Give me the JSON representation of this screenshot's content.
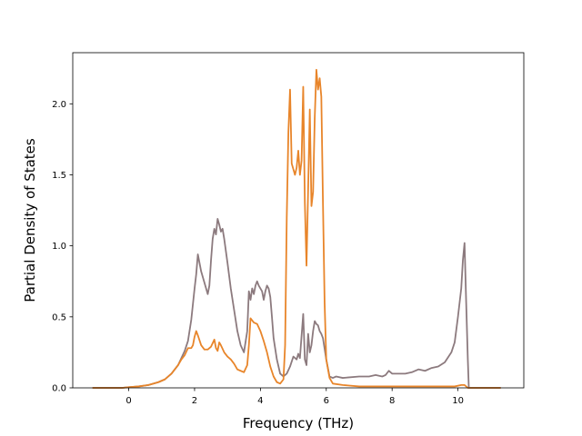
{
  "chart_data": {
    "type": "line",
    "title": "",
    "xlabel": "Frequency (THz)",
    "ylabel": "Partial Density of States",
    "xlim": [
      -1.7,
      12.0
    ],
    "ylim": [
      0.0,
      2.36
    ],
    "xticks": [
      0,
      2,
      4,
      6,
      8,
      10
    ],
    "xtick_labels": [
      "0",
      "2",
      "4",
      "6",
      "8",
      "10"
    ],
    "yticks": [
      0.0,
      0.5,
      1.0,
      1.5,
      2.0
    ],
    "ytick_labels": [
      "0.0",
      "0.5",
      "1.0",
      "1.5",
      "2.0"
    ],
    "grid": false,
    "legend": "none",
    "series": [
      {
        "color": "#8c7a7e",
        "points": [
          [
            -1.1,
            0.0
          ],
          [
            -0.2,
            0.0
          ],
          [
            0.0,
            0.005
          ],
          [
            0.3,
            0.01
          ],
          [
            0.6,
            0.02
          ],
          [
            0.9,
            0.04
          ],
          [
            1.1,
            0.06
          ],
          [
            1.3,
            0.1
          ],
          [
            1.5,
            0.16
          ],
          [
            1.7,
            0.26
          ],
          [
            1.8,
            0.33
          ],
          [
            1.9,
            0.48
          ],
          [
            2.0,
            0.7
          ],
          [
            2.05,
            0.8
          ],
          [
            2.1,
            0.94
          ],
          [
            2.15,
            0.88
          ],
          [
            2.2,
            0.82
          ],
          [
            2.3,
            0.74
          ],
          [
            2.4,
            0.66
          ],
          [
            2.45,
            0.72
          ],
          [
            2.5,
            0.9
          ],
          [
            2.55,
            1.05
          ],
          [
            2.6,
            1.12
          ],
          [
            2.65,
            1.08
          ],
          [
            2.7,
            1.19
          ],
          [
            2.75,
            1.15
          ],
          [
            2.8,
            1.1
          ],
          [
            2.85,
            1.12
          ],
          [
            2.9,
            1.05
          ],
          [
            3.0,
            0.88
          ],
          [
            3.1,
            0.7
          ],
          [
            3.2,
            0.55
          ],
          [
            3.3,
            0.4
          ],
          [
            3.4,
            0.3
          ],
          [
            3.5,
            0.25
          ],
          [
            3.6,
            0.4
          ],
          [
            3.65,
            0.68
          ],
          [
            3.7,
            0.62
          ],
          [
            3.75,
            0.7
          ],
          [
            3.8,
            0.66
          ],
          [
            3.85,
            0.72
          ],
          [
            3.9,
            0.75
          ],
          [
            3.95,
            0.72
          ],
          [
            4.0,
            0.7
          ],
          [
            4.05,
            0.68
          ],
          [
            4.1,
            0.62
          ],
          [
            4.15,
            0.68
          ],
          [
            4.2,
            0.72
          ],
          [
            4.25,
            0.7
          ],
          [
            4.3,
            0.64
          ],
          [
            4.35,
            0.5
          ],
          [
            4.4,
            0.35
          ],
          [
            4.5,
            0.2
          ],
          [
            4.6,
            0.1
          ],
          [
            4.7,
            0.08
          ],
          [
            4.8,
            0.1
          ],
          [
            4.9,
            0.15
          ],
          [
            5.0,
            0.22
          ],
          [
            5.1,
            0.2
          ],
          [
            5.15,
            0.24
          ],
          [
            5.2,
            0.21
          ],
          [
            5.3,
            0.52
          ],
          [
            5.35,
            0.2
          ],
          [
            5.4,
            0.16
          ],
          [
            5.45,
            0.38
          ],
          [
            5.5,
            0.25
          ],
          [
            5.55,
            0.3
          ],
          [
            5.6,
            0.4
          ],
          [
            5.65,
            0.47
          ],
          [
            5.7,
            0.45
          ],
          [
            5.75,
            0.44
          ],
          [
            5.8,
            0.4
          ],
          [
            5.85,
            0.38
          ],
          [
            5.9,
            0.35
          ],
          [
            6.0,
            0.2
          ],
          [
            6.1,
            0.08
          ],
          [
            6.2,
            0.07
          ],
          [
            6.3,
            0.08
          ],
          [
            6.5,
            0.07
          ],
          [
            7.0,
            0.08
          ],
          [
            7.3,
            0.08
          ],
          [
            7.5,
            0.09
          ],
          [
            7.7,
            0.08
          ],
          [
            7.8,
            0.09
          ],
          [
            7.9,
            0.12
          ],
          [
            8.0,
            0.1
          ],
          [
            8.4,
            0.1
          ],
          [
            8.6,
            0.11
          ],
          [
            8.8,
            0.13
          ],
          [
            9.0,
            0.12
          ],
          [
            9.2,
            0.14
          ],
          [
            9.4,
            0.15
          ],
          [
            9.6,
            0.18
          ],
          [
            9.8,
            0.25
          ],
          [
            9.9,
            0.32
          ],
          [
            10.0,
            0.5
          ],
          [
            10.1,
            0.7
          ],
          [
            10.15,
            0.9
          ],
          [
            10.2,
            1.02
          ],
          [
            10.25,
            0.6
          ],
          [
            10.3,
            0.2
          ],
          [
            10.33,
            0.0
          ],
          [
            11.3,
            0.0
          ]
        ]
      },
      {
        "color": "#e8852a",
        "points": [
          [
            -1.1,
            0.0
          ],
          [
            -0.2,
            0.0
          ],
          [
            0.0,
            0.005
          ],
          [
            0.3,
            0.01
          ],
          [
            0.6,
            0.02
          ],
          [
            0.9,
            0.04
          ],
          [
            1.1,
            0.06
          ],
          [
            1.3,
            0.1
          ],
          [
            1.5,
            0.16
          ],
          [
            1.6,
            0.2
          ],
          [
            1.7,
            0.23
          ],
          [
            1.8,
            0.28
          ],
          [
            1.9,
            0.28
          ],
          [
            1.95,
            0.3
          ],
          [
            2.0,
            0.36
          ],
          [
            2.05,
            0.4
          ],
          [
            2.1,
            0.37
          ],
          [
            2.2,
            0.3
          ],
          [
            2.3,
            0.27
          ],
          [
            2.4,
            0.27
          ],
          [
            2.5,
            0.29
          ],
          [
            2.6,
            0.34
          ],
          [
            2.65,
            0.28
          ],
          [
            2.7,
            0.26
          ],
          [
            2.75,
            0.32
          ],
          [
            2.8,
            0.3
          ],
          [
            2.9,
            0.25
          ],
          [
            3.0,
            0.22
          ],
          [
            3.1,
            0.2
          ],
          [
            3.2,
            0.17
          ],
          [
            3.3,
            0.13
          ],
          [
            3.4,
            0.12
          ],
          [
            3.5,
            0.11
          ],
          [
            3.6,
            0.16
          ],
          [
            3.65,
            0.3
          ],
          [
            3.7,
            0.49
          ],
          [
            3.8,
            0.46
          ],
          [
            3.9,
            0.45
          ],
          [
            4.0,
            0.4
          ],
          [
            4.1,
            0.33
          ],
          [
            4.2,
            0.25
          ],
          [
            4.3,
            0.15
          ],
          [
            4.4,
            0.08
          ],
          [
            4.5,
            0.04
          ],
          [
            4.6,
            0.03
          ],
          [
            4.7,
            0.06
          ],
          [
            4.75,
            0.3
          ],
          [
            4.8,
            1.2
          ],
          [
            4.85,
            1.8
          ],
          [
            4.9,
            2.1
          ],
          [
            4.95,
            1.58
          ],
          [
            5.0,
            1.54
          ],
          [
            5.05,
            1.5
          ],
          [
            5.1,
            1.55
          ],
          [
            5.15,
            1.67
          ],
          [
            5.2,
            1.5
          ],
          [
            5.25,
            1.6
          ],
          [
            5.3,
            2.12
          ],
          [
            5.35,
            1.3
          ],
          [
            5.4,
            0.86
          ],
          [
            5.45,
            1.4
          ],
          [
            5.5,
            1.96
          ],
          [
            5.55,
            1.28
          ],
          [
            5.6,
            1.38
          ],
          [
            5.65,
            1.9
          ],
          [
            5.7,
            2.24
          ],
          [
            5.75,
            2.1
          ],
          [
            5.8,
            2.18
          ],
          [
            5.85,
            2.05
          ],
          [
            5.9,
            1.3
          ],
          [
            5.95,
            0.6
          ],
          [
            6.0,
            0.2
          ],
          [
            6.1,
            0.07
          ],
          [
            6.2,
            0.03
          ],
          [
            6.5,
            0.02
          ],
          [
            7.0,
            0.01
          ],
          [
            8.0,
            0.01
          ],
          [
            9.0,
            0.01
          ],
          [
            9.9,
            0.01
          ],
          [
            10.1,
            0.02
          ],
          [
            10.2,
            0.02
          ],
          [
            10.3,
            0.0
          ],
          [
            11.3,
            0.0
          ]
        ]
      }
    ]
  }
}
